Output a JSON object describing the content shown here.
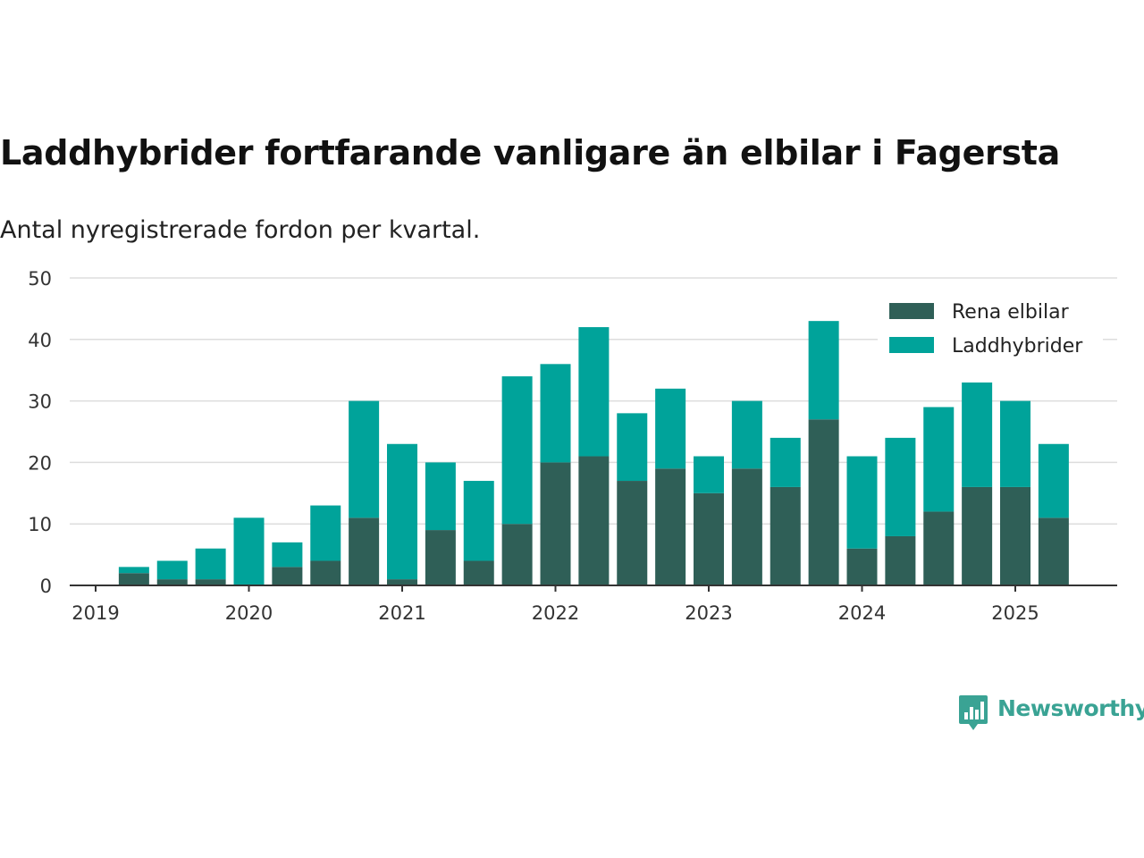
{
  "title": "Laddhybrider fortfarande vanligare än elbilar i Fagersta",
  "subtitle": "Antal nyregistrerade fordon per kvartal.",
  "brand": {
    "name": "Newsworthy",
    "color": "#3aa394",
    "icon": "newsworthy-logo-icon"
  },
  "chart_data": {
    "type": "bar",
    "stacked": true,
    "categories": [
      "2019-Q1",
      "2019-Q2",
      "2019-Q3",
      "2019-Q4",
      "2020-Q1",
      "2020-Q2",
      "2020-Q3",
      "2020-Q4",
      "2021-Q1",
      "2021-Q2",
      "2021-Q3",
      "2021-Q4",
      "2022-Q1",
      "2022-Q2",
      "2022-Q3",
      "2022-Q4",
      "2023-Q1",
      "2023-Q2",
      "2023-Q3",
      "2023-Q4",
      "2024-Q1",
      "2024-Q2",
      "2024-Q3",
      "2024-Q4",
      "2025-Q1",
      "2025-Q2"
    ],
    "series": [
      {
        "name": "Rena elbilar",
        "color": "#2f5f57",
        "values": [
          0,
          2,
          1,
          1,
          0,
          3,
          4,
          11,
          1,
          9,
          4,
          10,
          20,
          21,
          17,
          19,
          15,
          19,
          16,
          27,
          6,
          8,
          12,
          16,
          16,
          11
        ]
      },
      {
        "name": "Laddhybrider",
        "color": "#00a39a",
        "values": [
          0,
          1,
          3,
          5,
          11,
          4,
          9,
          19,
          22,
          11,
          13,
          24,
          16,
          21,
          11,
          13,
          6,
          11,
          8,
          16,
          15,
          16,
          17,
          17,
          14,
          12
        ]
      }
    ],
    "x_ticks": [
      "2019",
      "2020",
      "2021",
      "2022",
      "2023",
      "2024",
      "2025"
    ],
    "y_ticks": [
      "0",
      "10",
      "20",
      "30",
      "40",
      "50"
    ],
    "ylim": [
      0,
      50
    ],
    "grid": true,
    "legend_position": "top-right"
  }
}
